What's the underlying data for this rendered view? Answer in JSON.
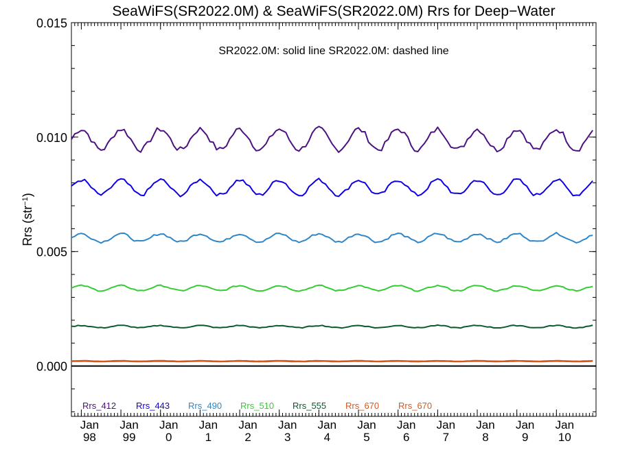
{
  "chart_data": {
    "type": "line",
    "title": "SeaWiFS(SR2022.0M) & SeaWiFS(SR2022.0M)  Rrs for Deep−Water",
    "annotation": "SR2022.0M: solid line   SR2022.0M: dashed line",
    "ylabel": "Rrs (str",
    "ylabel_sup": "−1",
    "ylabel_close": ")",
    "ylim": [
      -0.0022,
      0.015
    ],
    "yticks": [
      0.0,
      0.005,
      0.01,
      0.015
    ],
    "ytick_labels": [
      "0.000",
      "0.005",
      "0.010",
      "0.015"
    ],
    "xlim": [
      1997.75,
      2011.0
    ],
    "xticks": [
      1998,
      1999,
      2000,
      2001,
      2002,
      2003,
      2004,
      2005,
      2006,
      2007,
      2008,
      2009,
      2010
    ],
    "xtick_labels": [
      [
        "Jan",
        "98"
      ],
      [
        "Jan",
        "99"
      ],
      [
        "Jan",
        "0"
      ],
      [
        "Jan",
        "1"
      ],
      [
        "Jan",
        "2"
      ],
      [
        "Jan",
        "3"
      ],
      [
        "Jan",
        "4"
      ],
      [
        "Jan",
        "5"
      ],
      [
        "Jan",
        "6"
      ],
      [
        "Jan",
        "7"
      ],
      [
        "Jan",
        "8"
      ],
      [
        "Jan",
        "9"
      ],
      [
        "Jan",
        "10"
      ]
    ],
    "zero_line": true,
    "series": [
      {
        "name": "Rrs_412",
        "color": "#4b1182",
        "mean": 0.0099,
        "amp": 0.00045,
        "noise": 0.00012
      },
      {
        "name": "Rrs_443",
        "color": "#0f00e6",
        "mean": 0.0078,
        "amp": 0.00033,
        "noise": 8e-05
      },
      {
        "name": "Rrs_490",
        "color": "#2e86c8",
        "mean": 0.0056,
        "amp": 0.00018,
        "noise": 5e-05
      },
      {
        "name": "Rrs_510",
        "color": "#33cc33",
        "mean": 0.0034,
        "amp": 0.00011,
        "noise": 3e-05
      },
      {
        "name": "Rrs_555",
        "color": "#0b5a2a",
        "mean": 0.00172,
        "amp": 5e-05,
        "noise": 2e-05
      },
      {
        "name": "Rrs_670",
        "color": "#d8581a",
        "mean": 0.00022,
        "amp": 1.2e-05,
        "noise": 4e-06
      },
      {
        "name": "Rrs_670",
        "color": "#d8581a",
        "mean": 0.0002,
        "amp": 1e-05,
        "noise": 4e-06
      }
    ]
  }
}
